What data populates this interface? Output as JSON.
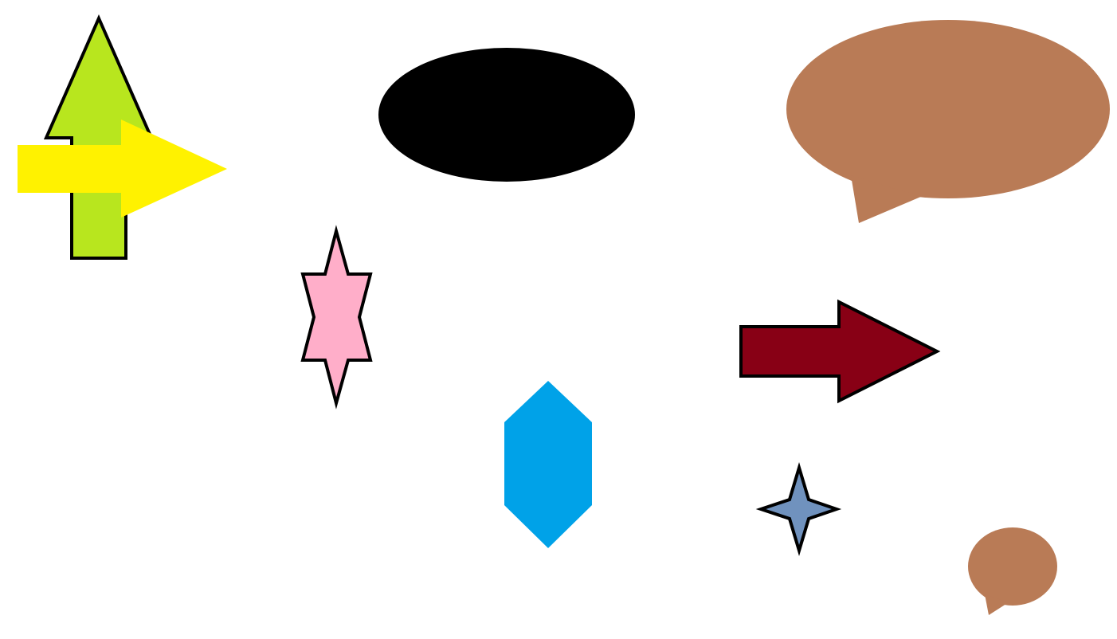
{
  "canvas": {
    "background": "#ffffff"
  },
  "shapes": [
    {
      "id": "green-up-arrow",
      "type": "arrow-up",
      "fill": "#b8e61e",
      "stroke": "#000000"
    },
    {
      "id": "yellow-right-arrow",
      "type": "arrow-right",
      "fill": "#fff200",
      "stroke": "none"
    },
    {
      "id": "black-ellipse",
      "type": "ellipse",
      "fill": "#000000",
      "stroke": "none"
    },
    {
      "id": "brown-speech-bubble-large",
      "type": "speech-bubble",
      "fill": "#b97b56",
      "stroke": "none"
    },
    {
      "id": "pink-six-point-star",
      "type": "six-point-star",
      "fill": "#ffaec9",
      "stroke": "#000000"
    },
    {
      "id": "dark-red-right-arrow",
      "type": "arrow-right",
      "fill": "#880015",
      "stroke": "#000000"
    },
    {
      "id": "blue-hexagon",
      "type": "hexagon",
      "fill": "#00a2e8",
      "stroke": "none"
    },
    {
      "id": "steel-blue-four-point-star",
      "type": "four-point-star",
      "fill": "#7092be",
      "stroke": "#000000"
    },
    {
      "id": "brown-speech-bubble-small",
      "type": "speech-bubble",
      "fill": "#b97b56",
      "stroke": "none"
    }
  ]
}
